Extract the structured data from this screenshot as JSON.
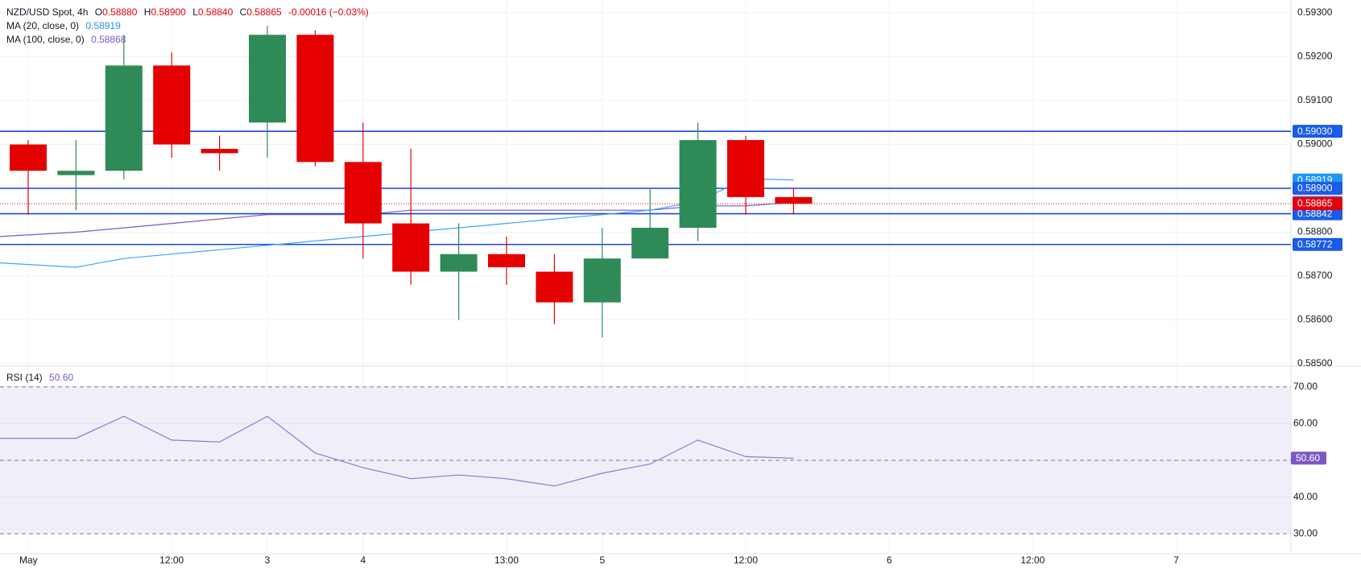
{
  "header": {
    "symbol": "NZD/USD Spot, 4h",
    "open_label": "O",
    "open": "0.58880",
    "high_label": "H",
    "high": "0.58900",
    "low_label": "L",
    "low": "0.58840",
    "close_label": "C",
    "close": "0.58865",
    "change": "-0.00016 (−0.03%)",
    "ma20_label": "MA (20, close, 0)",
    "ma20_value": "0.58919",
    "ma100_label": "MA (100, close, 0)",
    "ma100_value": "0.58868",
    "rsi_label": "RSI (14)",
    "rsi_value": "50.60"
  },
  "colors": {
    "up": "#2e8b57",
    "down": "#e50000",
    "hline": "#1848d8",
    "ma20": "#42a5f5",
    "ma100": "#7e57c2",
    "rsi": "#8c7ad0",
    "rsi_band": "#f1eefa",
    "grid": "#f0f3fa",
    "last_price_tag": "#e3000b",
    "ma20_tag": "#2196f3",
    "ma100_tag": "#7e57c2",
    "hline_tag": "#1a5be8"
  },
  "chart_data": {
    "type": "candlestick",
    "title": "NZD/USD Spot, 4h",
    "price_axis": {
      "min": 0.585,
      "max": 0.593,
      "ticks": [
        "0.58500",
        "0.58600",
        "0.58700",
        "0.58800",
        "0.58900",
        "0.59000",
        "0.59100",
        "0.59200",
        "0.59300"
      ]
    },
    "time_axis_labels": [
      {
        "label": "May",
        "index": 0
      },
      {
        "label": "12:00",
        "index": 3
      },
      {
        "label": "3",
        "index": 5
      },
      {
        "label": "4",
        "index": 7
      },
      {
        "label": "13:00",
        "index": 10
      },
      {
        "label": "5",
        "index": 12
      },
      {
        "label": "12:00",
        "index": 15
      },
      {
        "label": "6",
        "index": 18
      },
      {
        "label": "12:00",
        "index": 21
      },
      {
        "label": "7",
        "index": 24
      }
    ],
    "candles": [
      {
        "o": 0.59,
        "h": 0.5901,
        "l": 0.5884,
        "c": 0.5894
      },
      {
        "o": 0.5893,
        "h": 0.5901,
        "l": 0.5885,
        "c": 0.5894
      },
      {
        "o": 0.5894,
        "h": 0.5925,
        "l": 0.5892,
        "c": 0.5918
      },
      {
        "o": 0.5918,
        "h": 0.5921,
        "l": 0.5897,
        "c": 0.59
      },
      {
        "o": 0.5899,
        "h": 0.5902,
        "l": 0.5894,
        "c": 0.5898
      },
      {
        "o": 0.5905,
        "h": 0.5927,
        "l": 0.5897,
        "c": 0.5925
      },
      {
        "o": 0.5925,
        "h": 0.5926,
        "l": 0.5895,
        "c": 0.5896
      },
      {
        "o": 0.5896,
        "h": 0.5905,
        "l": 0.5874,
        "c": 0.5882
      },
      {
        "o": 0.5882,
        "h": 0.5899,
        "l": 0.5868,
        "c": 0.5871
      },
      {
        "o": 0.5871,
        "h": 0.5882,
        "l": 0.586,
        "c": 0.5875
      },
      {
        "o": 0.5875,
        "h": 0.5879,
        "l": 0.5868,
        "c": 0.5872
      },
      {
        "o": 0.5871,
        "h": 0.5875,
        "l": 0.5859,
        "c": 0.5864
      },
      {
        "o": 0.5864,
        "h": 0.5881,
        "l": 0.5856,
        "c": 0.5874
      },
      {
        "o": 0.5874,
        "h": 0.589,
        "l": 0.5874,
        "c": 0.5881
      },
      {
        "o": 0.5881,
        "h": 0.5905,
        "l": 0.5878,
        "c": 0.5901
      },
      {
        "o": 0.5901,
        "h": 0.5902,
        "l": 0.5884,
        "c": 0.5888
      },
      {
        "o": 0.5888,
        "h": 0.589,
        "l": 0.5884,
        "c": 0.58865
      }
    ],
    "ma20": [
      0.5873,
      0.5872,
      0.5874,
      0.5875,
      0.5876,
      0.5877,
      0.5878,
      0.5879,
      0.588,
      0.5881,
      0.5882,
      0.5883,
      0.5884,
      0.5885,
      0.5887,
      0.58922,
      0.58919
    ],
    "ma100": [
      0.5879,
      0.588,
      0.5881,
      0.5882,
      0.5883,
      0.5884,
      0.5884,
      0.5884,
      0.5885,
      0.5885,
      0.5885,
      0.5885,
      0.5885,
      0.5885,
      0.5886,
      0.5886,
      0.58868
    ],
    "horizontal_levels": [
      {
        "value": 0.5903,
        "label": "0.59030"
      },
      {
        "value": 0.589,
        "label": "0.58900"
      },
      {
        "value": 0.58842,
        "label": "0.58842"
      },
      {
        "value": 0.58772,
        "label": "0.58772"
      }
    ],
    "last_price": {
      "value": 0.58865,
      "label": "0.58865"
    },
    "ma20_tag": {
      "value": 0.58919,
      "label": "0.58919"
    },
    "ma100_tag": {
      "value": 0.58868,
      "label": "0.58868"
    },
    "rsi": {
      "axis": {
        "min": 25,
        "max": 75,
        "ticks": [
          "30.00",
          "40.00",
          "50.00",
          "60.00",
          "70.00"
        ]
      },
      "band": [
        30,
        70
      ],
      "midline": 50,
      "values": [
        56,
        56,
        62,
        55.5,
        55,
        62,
        52,
        48,
        45,
        46,
        45,
        43,
        46.5,
        49,
        55.5,
        51,
        50.6
      ],
      "last_label": "50.60"
    }
  }
}
